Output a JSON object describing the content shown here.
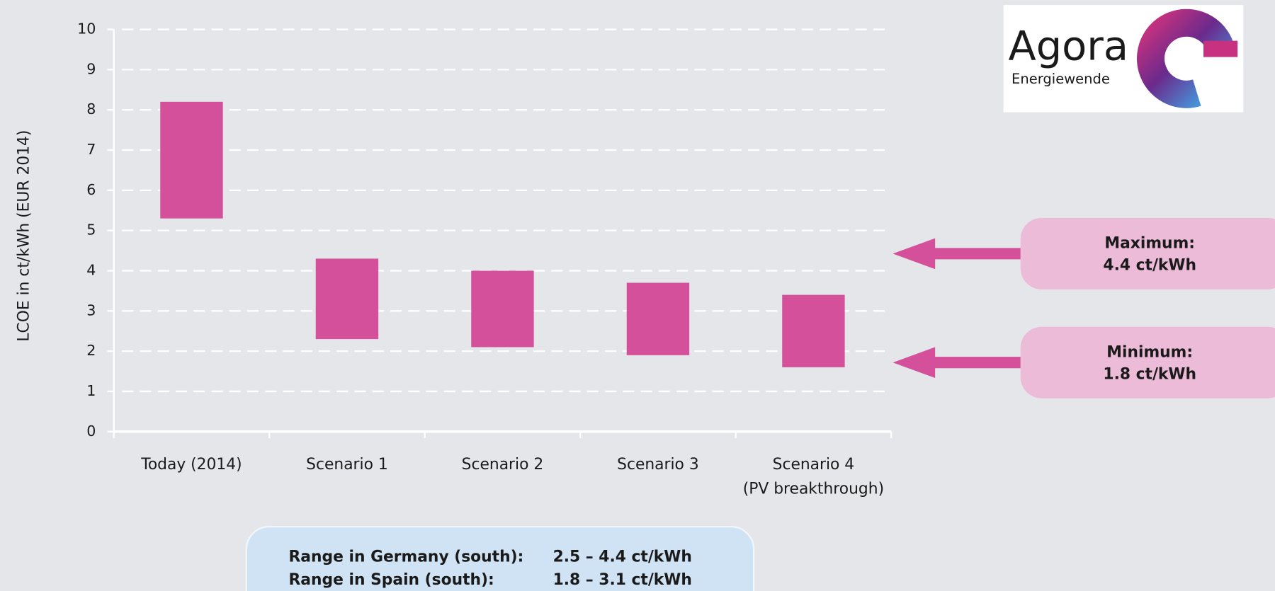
{
  "chart_data": {
    "type": "bar",
    "y_label": "LCOE in ct/kWh (EUR 2014)",
    "categories": [
      [
        "Today (2014)"
      ],
      [
        "Scenario 1"
      ],
      [
        "Scenario 2"
      ],
      [
        "Scenario 3"
      ],
      [
        "Scenario 4",
        "(PV breakthrough)"
      ]
    ],
    "low": [
      5.3,
      2.3,
      2.1,
      1.9,
      1.6
    ],
    "high": [
      8.2,
      4.3,
      4.0,
      3.7,
      3.4
    ],
    "color": "#d4509a",
    "ylim": [
      0,
      10
    ],
    "yticks": [
      0,
      1,
      2,
      3,
      4,
      5,
      6,
      7,
      8,
      9,
      10
    ],
    "grid": true,
    "annotations": [
      [
        "Maximum:",
        "4.4 ct/kWh"
      ],
      [
        "Minimum:",
        "1.8 ct/kWh"
      ]
    ],
    "range_box": [
      [
        "Range in Germany (south):",
        "2.5 – 4.4 ct/kWh"
      ],
      [
        "Range in Spain (south):",
        "1.8 – 3.1 ct/kWh"
      ]
    ],
    "logo": {
      "name": "Agora",
      "subtitle": "Energiewende"
    }
  }
}
